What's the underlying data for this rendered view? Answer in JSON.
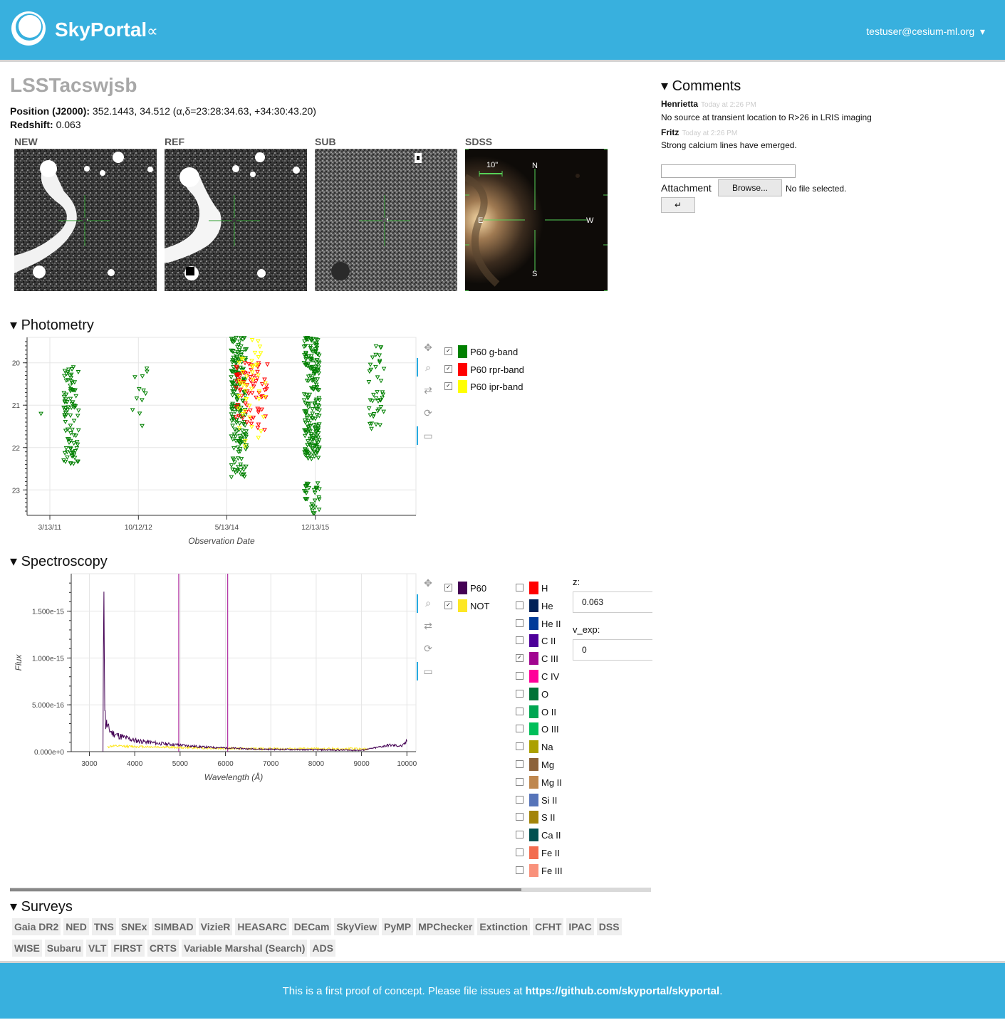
{
  "header": {
    "brand": "SkyPortal",
    "brand_symbol": "∝",
    "user_email": "testuser@cesium-ml.org",
    "user_caret": "▾"
  },
  "source": {
    "name": "LSSTacswjsb",
    "position_label": "Position (J2000):",
    "position_value": "352.1443, 34.512 (α,δ=23:28:34.63, +34:30:43.20)",
    "redshift_label": "Redshift:",
    "redshift_value": "0.063"
  },
  "thumbnails": [
    {
      "label": "NEW"
    },
    {
      "label": "REF"
    },
    {
      "label": "SUB"
    },
    {
      "label": "SDSS",
      "scale": "10\"",
      "compass": {
        "n": "N",
        "s": "S",
        "e": "E",
        "w": "W"
      }
    }
  ],
  "comments": {
    "title": "▾ Comments",
    "items": [
      {
        "author": "Henrietta",
        "time": "Today at 2:26 PM",
        "text": "No source at transient location to R>26 in LRIS imaging"
      },
      {
        "author": "Fritz",
        "time": "Today at 2:26 PM",
        "text": "Strong calcium lines have emerged."
      }
    ],
    "input_value": "",
    "attachment_label": "Attachment",
    "browse_label": "Browse...",
    "no_file_label": "No file selected.",
    "submit_label": "↵"
  },
  "photometry": {
    "title": "▾ Photometry",
    "legend": [
      {
        "label": "P60 g-band",
        "color": "#008000",
        "checked": true
      },
      {
        "label": "P60 rpr-band",
        "color": "#ff0000",
        "checked": true
      },
      {
        "label": "P60 ipr-band",
        "color": "#ffff00",
        "checked": true
      }
    ]
  },
  "spectroscopy": {
    "title": "▾ Spectroscopy",
    "legend": [
      {
        "label": "P60",
        "color": "#440154",
        "checked": true
      },
      {
        "label": "NOT",
        "color": "#fde725",
        "checked": true
      }
    ],
    "lines": [
      {
        "label": "H",
        "color": "#ff0000",
        "checked": false
      },
      {
        "label": "He",
        "color": "#002157",
        "checked": false
      },
      {
        "label": "He II",
        "color": "#003b99",
        "checked": false
      },
      {
        "label": "C II",
        "color": "#4d0099",
        "checked": false
      },
      {
        "label": "C III",
        "color": "#a1058f",
        "checked": true
      },
      {
        "label": "C IV",
        "color": "#ff0099",
        "checked": false
      },
      {
        "label": "O",
        "color": "#007236",
        "checked": false
      },
      {
        "label": "O II",
        "color": "#00a651",
        "checked": false
      },
      {
        "label": "O III",
        "color": "#00bf59",
        "checked": false
      },
      {
        "label": "Na",
        "color": "#aba000",
        "checked": false
      },
      {
        "label": "Mg",
        "color": "#8c6239",
        "checked": false
      },
      {
        "label": "Mg II",
        "color": "#bf874e",
        "checked": false
      },
      {
        "label": "Si II",
        "color": "#5674b9",
        "checked": false
      },
      {
        "label": "S II",
        "color": "#a38409",
        "checked": false
      },
      {
        "label": "Ca II",
        "color": "#005050",
        "checked": false
      },
      {
        "label": "Fe II",
        "color": "#f26c4f",
        "checked": false
      },
      {
        "label": "Fe III",
        "color": "#f9917b",
        "checked": false
      }
    ],
    "z_label": "z:",
    "z_value": "0.063",
    "vexp_label": "v_exp:",
    "vexp_value": "0"
  },
  "surveys": {
    "title": "▾ Surveys",
    "items": [
      "Gaia DR2",
      "NED",
      "TNS",
      "SNEx",
      "SIMBAD",
      "VizieR",
      "HEASARC",
      "DECam",
      "SkyView",
      "PyMP",
      "MPChecker",
      "Extinction",
      "CFHT",
      "IPAC",
      "DSS",
      "WISE",
      "Subaru",
      "VLT",
      "FIRST",
      "CRTS",
      "Variable Marshal (Search)",
      "ADS"
    ]
  },
  "footer": {
    "text": "This is a first proof of concept. Please file issues at ",
    "link": "https://github.com/skyportal/skyportal",
    "tail": "."
  },
  "chart_data": [
    {
      "type": "scatter",
      "xlabel": "Observation Date",
      "ylabel": "",
      "x_tick_labels": [
        "3/13/11",
        "10/12/12",
        "5/13/14",
        "12/13/15"
      ],
      "y_tick_labels": [
        "20",
        "21",
        "22",
        "23"
      ],
      "ylim": [
        23.6,
        19.4
      ],
      "y_inverted": true,
      "series": [
        {
          "name": "P60 g-band",
          "marker": "inverted-triangle",
          "clusters": [
            {
              "date": "2011-01-15",
              "mag_min": 21.2,
              "mag_max": 21.2,
              "n": 1
            },
            {
              "date": "2011-08-01",
              "mag_min": 20.1,
              "mag_max": 22.4,
              "n": 90
            },
            {
              "date": "2012-10-20",
              "mag_min": 20.1,
              "mag_max": 21.5,
              "n": 12
            },
            {
              "date": "2014-08-01",
              "mag_min": 19.4,
              "mag_max": 22.7,
              "n": 180
            },
            {
              "date": "2015-11-20",
              "mag_min": 19.4,
              "mag_max": 22.3,
              "n": 200
            },
            {
              "date": "2015-11-20",
              "mag_min": 22.8,
              "mag_max": 23.6,
              "n": 30
            },
            {
              "date": "2017-01-15",
              "mag_min": 19.6,
              "mag_max": 21.6,
              "n": 40
            }
          ]
        },
        {
          "name": "P60 rpr-band",
          "marker": "inverted-triangle",
          "clusters": [
            {
              "date": "2014-09-01",
              "mag_min": 20.0,
              "mag_max": 21.5,
              "n": 40
            },
            {
              "date": "2014-12-15",
              "mag_min": 20.0,
              "mag_max": 21.6,
              "n": 30
            }
          ]
        },
        {
          "name": "P60 ipr-band",
          "marker": "inverted-triangle",
          "clusters": [
            {
              "date": "2014-09-10",
              "mag_min": 19.6,
              "mag_max": 22.0,
              "n": 25
            },
            {
              "date": "2014-12-01",
              "mag_min": 19.4,
              "mag_max": 21.8,
              "n": 20
            }
          ]
        }
      ]
    },
    {
      "type": "line",
      "xlabel": "Wavelength (Å)",
      "ylabel": "Flux",
      "x_tick_labels": [
        "3000",
        "4000",
        "5000",
        "6000",
        "7000",
        "8000",
        "9000",
        "10000"
      ],
      "y_tick_labels": [
        "0.000e+0",
        "5.000e-16",
        "1.000e-15",
        "1.500e-15"
      ],
      "xlim": [
        2600,
        10200
      ],
      "ylim": [
        0,
        1.9e-15
      ],
      "series": [
        {
          "name": "P60",
          "x": [
            3300,
            3320,
            3340,
            3360,
            3380,
            3400,
            3500,
            3700,
            4000,
            4500,
            5000,
            5500,
            6000,
            6500,
            7000,
            8000,
            9000,
            9300,
            9600,
            9900,
            10000
          ],
          "y": [
            0,
            1.88e-15,
            5e-16,
            2.8e-16,
            3e-16,
            2.6e-16,
            2e-16,
            1.6e-16,
            1.2e-16,
            9e-17,
            7e-17,
            5e-17,
            4e-17,
            3e-17,
            2.5e-17,
            2e-17,
            1.5e-17,
            4e-17,
            7e-17,
            6e-17,
            1.1e-16
          ]
        },
        {
          "name": "NOT",
          "x": [
            3400,
            3500,
            4000,
            5000,
            6000,
            7000,
            8000,
            9000,
            9150
          ],
          "y": [
            5e-17,
            6e-17,
            5.5e-17,
            4.5e-17,
            3.5e-17,
            3e-17,
            3e-17,
            3e-17,
            2e-17
          ]
        }
      ],
      "vertical_lines": [
        {
          "name": "C III",
          "x": [
            4970,
            6050
          ],
          "color": "#a1058f"
        }
      ]
    }
  ]
}
